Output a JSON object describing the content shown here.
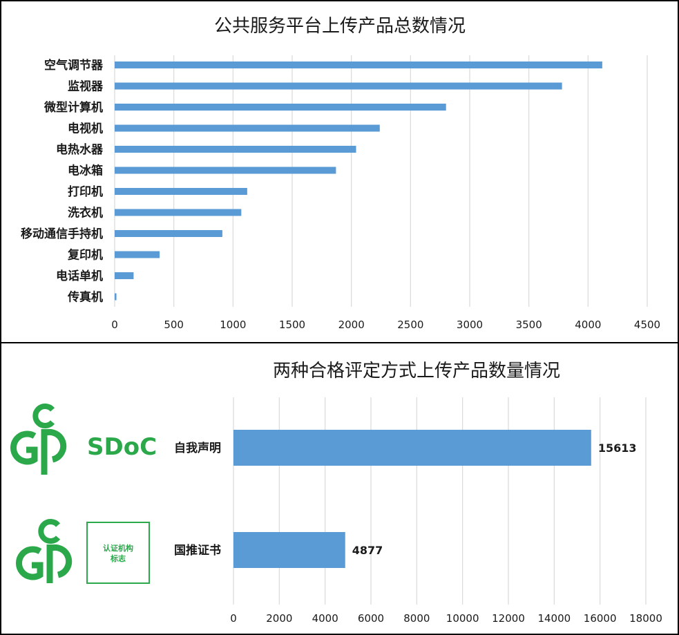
{
  "chart_data": [
    {
      "type": "bar",
      "orientation": "horizontal",
      "title": "公共服务平台上传产品总数情况",
      "categories": [
        "空气调节器",
        "监视器",
        "微型计算机",
        "电视机",
        "电热水器",
        "电冰箱",
        "打印机",
        "洗衣机",
        "移动通信手持机",
        "复印机",
        "电话单机",
        "传真机"
      ],
      "values": [
        4120,
        3780,
        2800,
        2240,
        2040,
        1870,
        1120,
        1070,
        910,
        380,
        160,
        15
      ],
      "xlim": [
        0,
        4500
      ],
      "xticks": [
        "0",
        "500",
        "1000",
        "1500",
        "2000",
        "2500",
        "3000",
        "3500",
        "4000",
        "4500"
      ],
      "grid": true,
      "color": "#5b9bd5"
    },
    {
      "type": "bar",
      "orientation": "horizontal",
      "title": "两种合格评定方式上传产品数量情况",
      "categories": [
        "自我声明",
        "国推证书"
      ],
      "values": [
        15613,
        4877
      ],
      "data_labels": [
        "15613",
        "4877"
      ],
      "xlim": [
        0,
        18000
      ],
      "xticks": [
        "0",
        "2000",
        "4000",
        "6000",
        "8000",
        "10000",
        "12000",
        "14000",
        "16000",
        "18000"
      ],
      "grid": true,
      "color": "#5b9bd5"
    }
  ],
  "logos": {
    "sdoc_text": "SDoC",
    "cert_badge_line1": "认证机构",
    "cert_badge_line2": "标志",
    "logo_color": "#2aa84a"
  }
}
